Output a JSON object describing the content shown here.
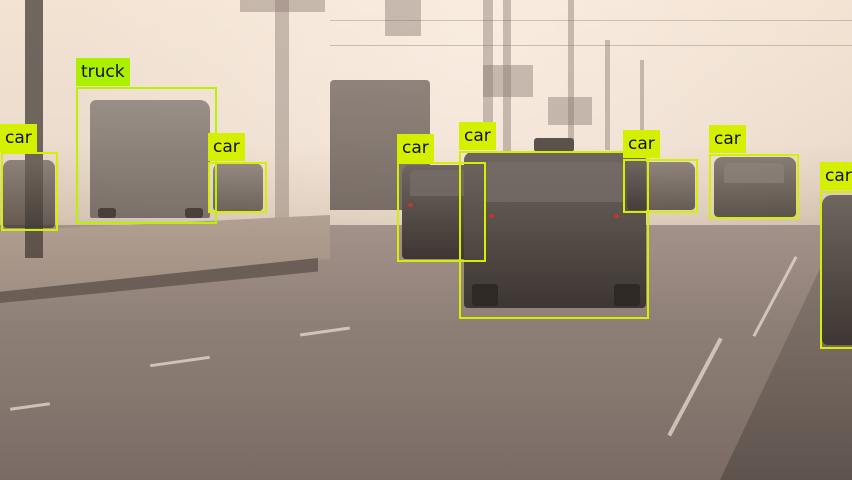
{
  "image": {
    "description_colors": {
      "box_car": "#d4f000",
      "box_truck": "#b9f200"
    }
  },
  "detections": [
    {
      "label": "car"
    },
    {
      "label": "truck"
    },
    {
      "label": "car"
    },
    {
      "label": "car"
    },
    {
      "label": "car"
    },
    {
      "label": "car"
    },
    {
      "label": "car"
    },
    {
      "label": "car"
    }
  ]
}
